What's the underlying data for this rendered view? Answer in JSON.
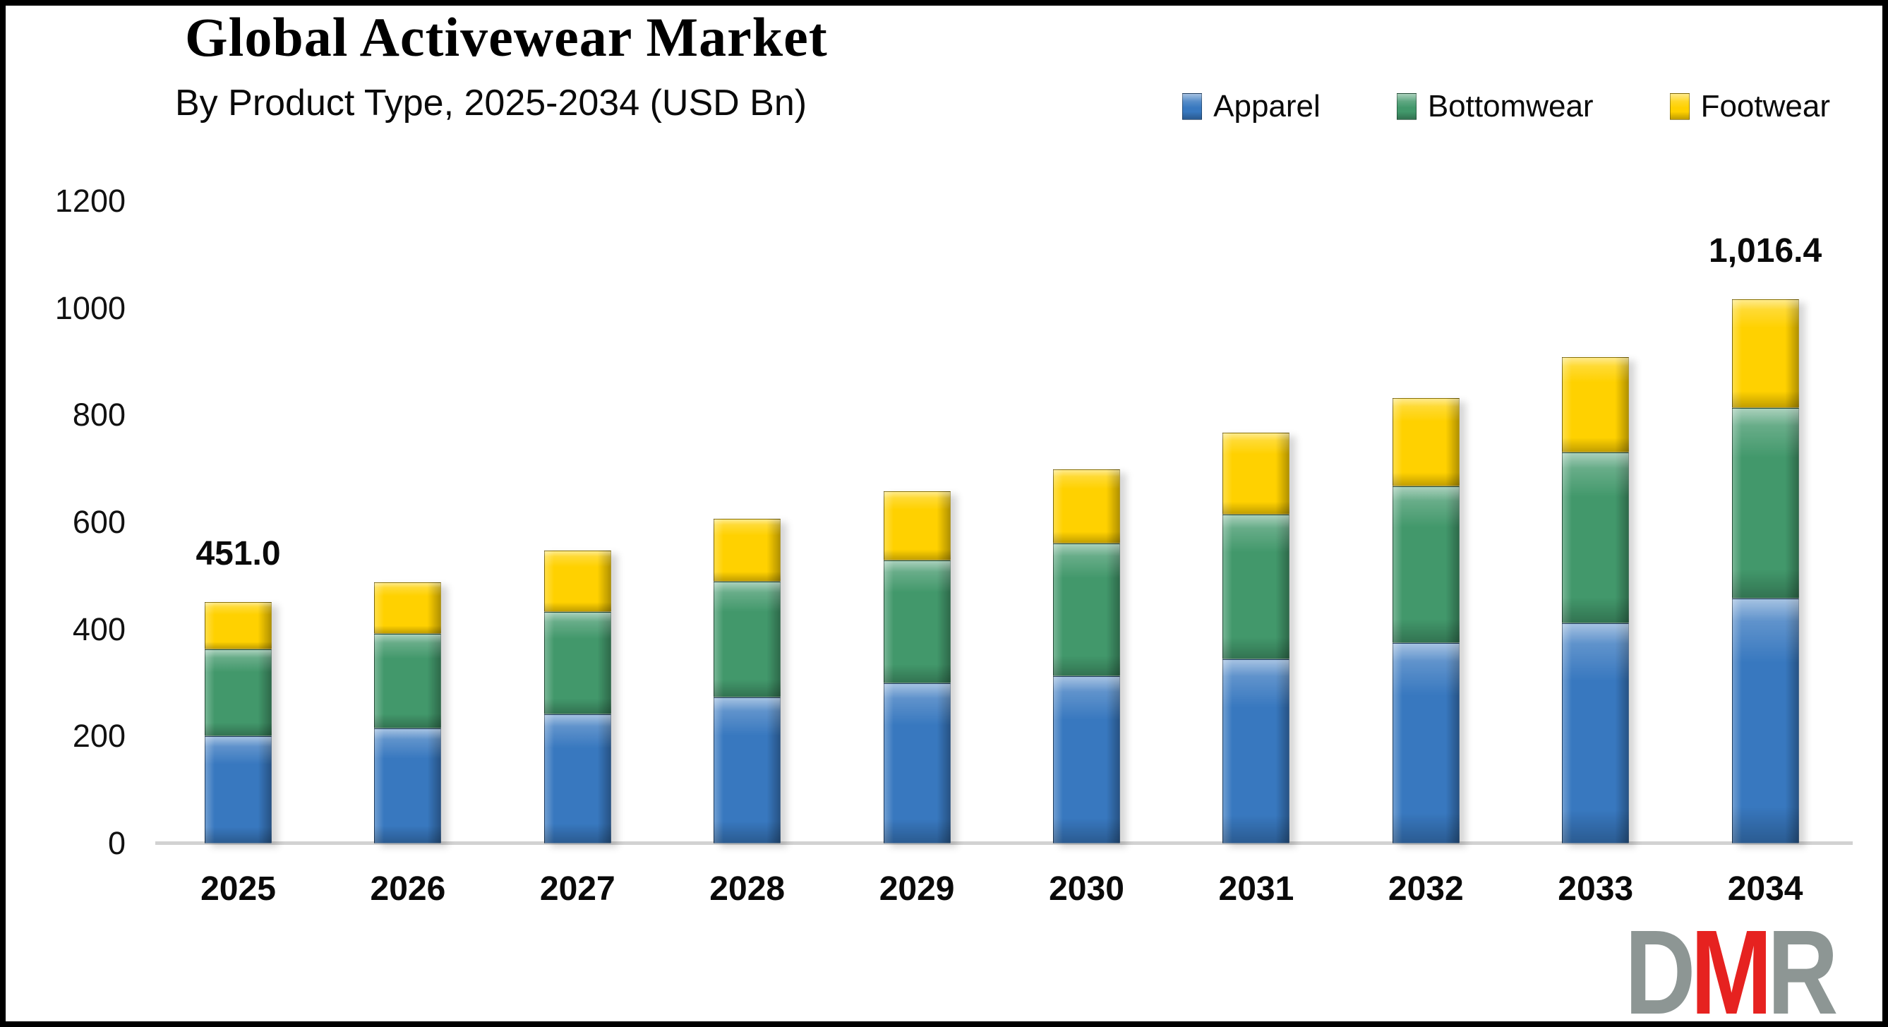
{
  "title": "Global Activewear Market",
  "subtitle": "By Product Type, 2025-2034 (USD Bn)",
  "chart_data": {
    "type": "bar",
    "stacked": true,
    "title": "Global Activewear Market",
    "subtitle": "By Product Type, 2025-2034 (USD Bn)",
    "unit": "USD Bn",
    "categories": [
      "2025",
      "2026",
      "2027",
      "2028",
      "2029",
      "2030",
      "2031",
      "2032",
      "2033",
      "2034"
    ],
    "series": [
      {
        "name": "Apparel",
        "color": "#3878BF",
        "values": [
          201.0,
          215.0,
          241.0,
          273.0,
          299.0,
          313.0,
          344.0,
          375.0,
          411.0,
          457.0
        ]
      },
      {
        "name": "Bottomwear",
        "color": "#42986B",
        "values": [
          161.0,
          177.0,
          192.0,
          216.0,
          230.0,
          247.0,
          271.0,
          292.0,
          320.0,
          356.0
        ]
      },
      {
        "name": "Footwear",
        "color": "#FFD100",
        "values": [
          89.0,
          96.0,
          114.0,
          118.0,
          129.0,
          139.0,
          153.0,
          165.0,
          178.0,
          203.4
        ]
      }
    ],
    "totals": [
      451.0,
      488.0,
      547.0,
      607.0,
      658.0,
      699.0,
      768.0,
      832.0,
      909.0,
      1016.4
    ],
    "data_labels": {
      "2025": "451.0",
      "2034": "1,016.4"
    },
    "ylim": [
      0,
      1200
    ],
    "yticks": [
      0,
      200,
      400,
      600,
      800,
      1000,
      1200
    ],
    "grid": false,
    "legend_position": "top-right",
    "axis_color": "#d2d2d2",
    "background_color": "#ffffff",
    "border_color": "#000000"
  },
  "logo": {
    "letters": [
      {
        "char": "D",
        "color": "#8D9694"
      },
      {
        "char": "M",
        "color": "#E62220"
      },
      {
        "char": "R",
        "color": "#8D9694"
      }
    ]
  }
}
